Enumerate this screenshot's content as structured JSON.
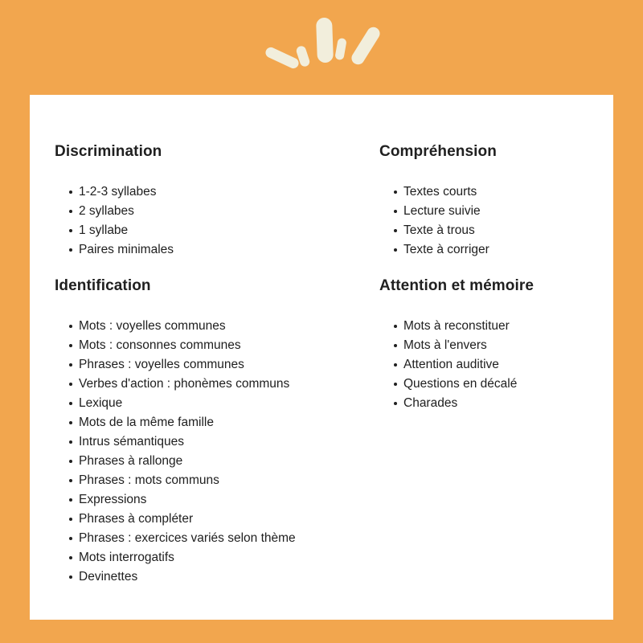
{
  "colors": {
    "background": "#F2A64E",
    "card": "#FFFFFF",
    "decoration": "#F2EEDC",
    "text": "#202020"
  },
  "decoration": {
    "icon": "sunburst-strokes-icon"
  },
  "sections": [
    {
      "title": "Discrimination",
      "items": [
        "1-2-3 syllabes",
        "2 syllabes",
        "1 syllabe",
        "Paires minimales"
      ]
    },
    {
      "title": "Compréhension",
      "items": [
        "Textes courts",
        "Lecture suivie",
        "Texte à trous",
        "Texte à corriger"
      ]
    },
    {
      "title": "Identification",
      "items": [
        "Mots : voyelles communes",
        "Mots : consonnes communes",
        "Phrases : voyelles communes",
        "Verbes d'action : phonèmes communs",
        "Lexique",
        "Mots de la même famille",
        "Intrus sémantiques",
        "Phrases à rallonge",
        "Phrases : mots communs",
        "Expressions",
        "Phrases à compléter",
        "Phrases : exercices variés selon thème",
        "Mots interrogatifs",
        "Devinettes"
      ]
    },
    {
      "title": "Attention et mémoire",
      "items": [
        "Mots à reconstituer",
        "Mots à l'envers",
        "Attention auditive",
        "Questions en décalé",
        "Charades"
      ]
    }
  ]
}
